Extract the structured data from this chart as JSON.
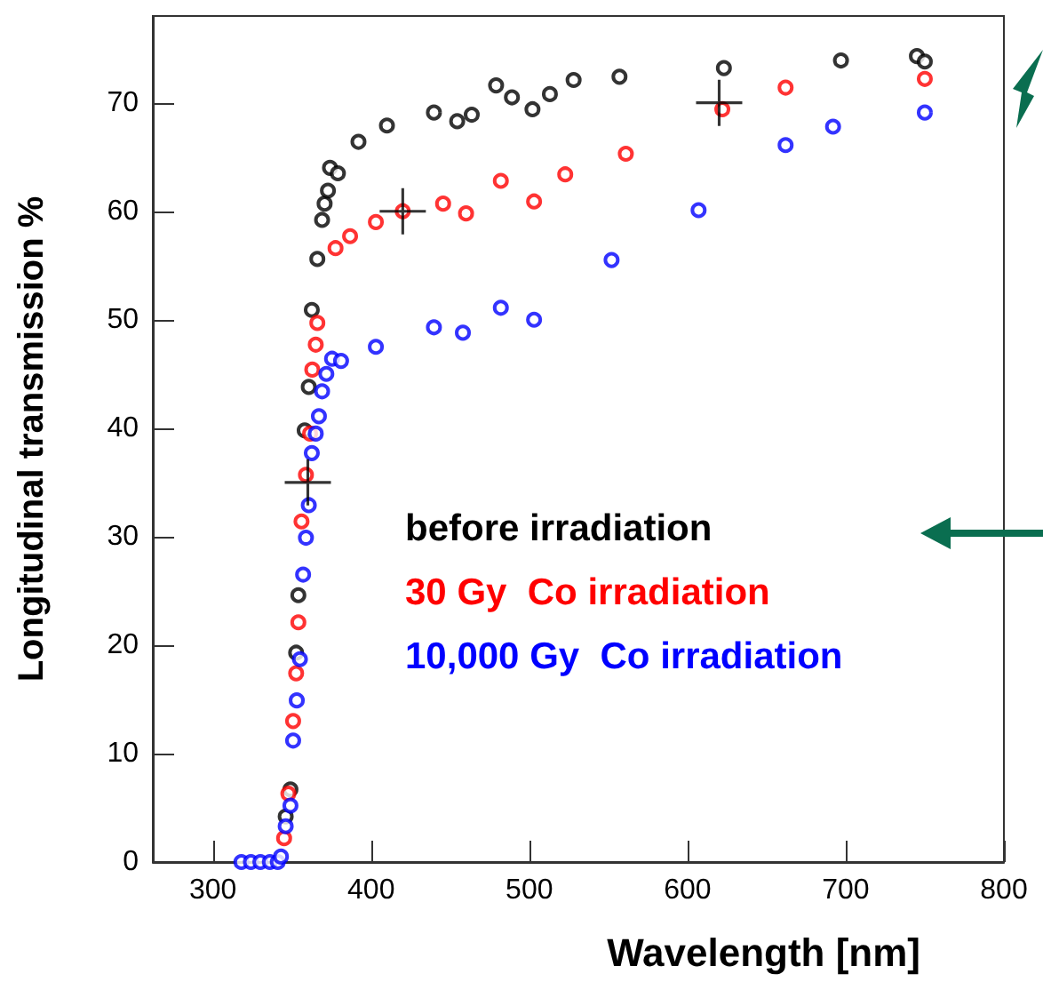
{
  "chart_data": {
    "type": "scatter",
    "xlabel": "Wavelength [nm]",
    "ylabel": "Longitudinal transmission %",
    "xlim": [
      262,
      800
    ],
    "ylim": [
      0,
      78
    ],
    "xticks": [
      300,
      400,
      500,
      600,
      700,
      800
    ],
    "yticks": [
      0,
      10,
      20,
      30,
      40,
      50,
      60,
      70
    ],
    "grid": false,
    "legend": "center",
    "marker": "circle",
    "series": [
      {
        "name": "before irradiation",
        "color": "#000000",
        "x": [
          346,
          349,
          352.6,
          354,
          358,
          360.6,
          362.5,
          366,
          369,
          370.6,
          372.7,
          374,
          379,
          392,
          410,
          439.7,
          454.4,
          463.6,
          479,
          489,
          502,
          513,
          528,
          557,
          623,
          697,
          745,
          750
        ],
        "values": [
          4.2,
          6.7,
          19.3,
          24.6,
          39.8,
          43.8,
          50.9,
          55.6,
          59.2,
          60.7,
          61.9,
          64,
          63.5,
          66.4,
          67.9,
          69.1,
          68.3,
          68.9,
          71.6,
          70.5,
          69.4,
          70.8,
          72.1,
          72.4,
          73.2,
          73.9,
          74.3,
          73.8
        ]
      },
      {
        "name": "30 Gy  Co irradiation",
        "color": "#ff0000",
        "x": [
          345,
          347.7,
          350.7,
          352.6,
          354,
          356,
          358.8,
          361.4,
          362.8,
          365,
          366,
          377.5,
          386.7,
          403,
          420,
          445.5,
          460,
          482,
          503,
          522.7,
          561,
          622,
          662,
          750
        ],
        "values": [
          2.2,
          6.3,
          13,
          17.4,
          22.1,
          31.4,
          35.7,
          39.5,
          45.4,
          47.7,
          49.7,
          56.6,
          57.7,
          59,
          60,
          60.7,
          59.8,
          62.8,
          60.9,
          63.4,
          65.3,
          69.4,
          71.4,
          72.2
        ]
      },
      {
        "name": "10,000 Gy  Co irradiation",
        "color": "#0000ff",
        "x": [
          318,
          324,
          330,
          336,
          341,
          343,
          346,
          349,
          350.7,
          353,
          355,
          357,
          358.8,
          360.6,
          362.5,
          365,
          367,
          369,
          371.7,
          375.3,
          381,
          403,
          439.7,
          458,
          482,
          503,
          552,
          607,
          662,
          692,
          750
        ],
        "values": [
          0,
          0,
          0,
          0,
          0,
          0.5,
          3.3,
          5.2,
          11.2,
          14.9,
          18.7,
          26.5,
          29.9,
          32.9,
          37.7,
          39.5,
          41.1,
          43.4,
          45,
          46.4,
          46.2,
          47.5,
          49.3,
          48.8,
          51.1,
          50,
          55.5,
          60.1,
          66.1,
          67.8,
          69.1
        ]
      },
      {
        "color": "#000000",
        "marker": "cross",
        "x": [
          360,
          420,
          620
        ],
        "values": [
          35,
          60,
          70
        ]
      }
    ]
  }
}
